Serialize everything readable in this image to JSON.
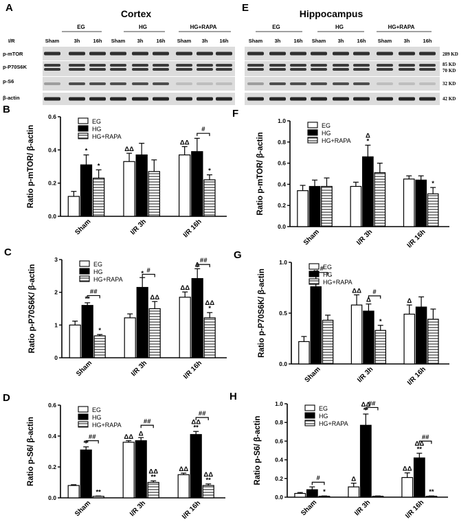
{
  "blots": {
    "A": {
      "letter": "A",
      "title": "Cortex"
    },
    "E": {
      "letter": "E",
      "title": "Hippocampus"
    },
    "group_headers": [
      "EG",
      "HG",
      "HG+RAPA"
    ],
    "lane_labels": [
      "I/R",
      "Sham",
      "3h",
      "16h",
      "Sham",
      "3h",
      "16h",
      "Sham",
      "3h",
      "16h"
    ],
    "row_labels": [
      "p-mTOR",
      "p-P70S6K",
      "p-S6",
      "β-actin"
    ],
    "kd_labels": [
      "289 KD",
      "85 KD",
      "70 KD",
      "32 KD",
      "42 KD"
    ]
  },
  "chart_data": [
    {
      "id": "B",
      "type": "bar",
      "letter": "B",
      "ylabel": "Ratio  p-mTOR/ β-actin",
      "ylim": [
        0,
        0.6
      ],
      "yticks": [
        "0.0",
        "0.2",
        "0.4",
        "0.6"
      ],
      "categories": [
        "Sham",
        "I/R 3h",
        "I/R 16h"
      ],
      "series": [
        {
          "name": "EG",
          "values": [
            0.12,
            0.33,
            0.37
          ],
          "errors": [
            0.03,
            0.05,
            0.05
          ],
          "marks": [
            "",
            "ΔΔ",
            "ΔΔ"
          ]
        },
        {
          "name": "HG",
          "values": [
            0.31,
            0.37,
            0.39
          ],
          "errors": [
            0.06,
            0.07,
            0.08
          ],
          "marks": [
            "*",
            "",
            ""
          ]
        },
        {
          "name": "HG+RAPA",
          "values": [
            0.23,
            0.27,
            0.22
          ],
          "errors": [
            0.05,
            0.07,
            0.03
          ],
          "marks": [
            "*",
            "",
            "*"
          ]
        }
      ],
      "brackets": [
        {
          "group": 2,
          "from": 1,
          "to": 2,
          "label": "#",
          "y": 0.5
        }
      ],
      "legend": "top-left"
    },
    {
      "id": "F",
      "type": "bar",
      "letter": "F",
      "ylabel": "Ratio  p-mTOR/ β-actin",
      "ylim": [
        0,
        1.0
      ],
      "yticks": [
        "0.0",
        "0.2",
        "0.4",
        "0.6",
        "0.8",
        "1.0"
      ],
      "categories": [
        "Sham",
        "I/R 3h",
        "I/R 16h"
      ],
      "series": [
        {
          "name": "EG",
          "values": [
            0.34,
            0.38,
            0.45
          ],
          "errors": [
            0.05,
            0.04,
            0.03
          ],
          "marks": [
            "",
            "",
            ""
          ]
        },
        {
          "name": "HG",
          "values": [
            0.38,
            0.66,
            0.44
          ],
          "errors": [
            0.06,
            0.11,
            0.04
          ],
          "marks": [
            "",
            "Δ\n*",
            ""
          ]
        },
        {
          "name": "HG+RAPA",
          "values": [
            0.38,
            0.51,
            0.31
          ],
          "errors": [
            0.08,
            0.09,
            0.06
          ],
          "marks": [
            "",
            "",
            "*"
          ]
        }
      ],
      "brackets": [],
      "legend": "top-left"
    },
    {
      "id": "C",
      "type": "bar",
      "letter": "C",
      "ylabel": "Ratio  p-P70S6K/ β-actin",
      "ylim": [
        0,
        3
      ],
      "yticks": [
        "0",
        "1",
        "2",
        "3"
      ],
      "categories": [
        "Sham",
        "I/R 3h",
        "I/R 16h"
      ],
      "series": [
        {
          "name": "EG",
          "values": [
            1.0,
            1.22,
            1.85
          ],
          "errors": [
            0.12,
            0.12,
            0.16
          ],
          "marks": [
            "",
            "",
            "ΔΔ"
          ]
        },
        {
          "name": "HG",
          "values": [
            1.6,
            2.15,
            2.42
          ],
          "errors": [
            0.08,
            0.3,
            0.3
          ],
          "marks": [
            "**",
            "*",
            "Δ"
          ]
        },
        {
          "name": "HG+RAPA",
          "values": [
            0.67,
            1.5,
            1.22
          ],
          "errors": [
            0.04,
            0.22,
            0.16
          ],
          "marks": [
            "*",
            "ΔΔ",
            "ΔΔ\n*"
          ]
        }
      ],
      "brackets": [
        {
          "group": 0,
          "from": 1,
          "to": 2,
          "label": "##",
          "y": 1.9
        },
        {
          "group": 1,
          "from": 1,
          "to": 2,
          "label": "#",
          "y": 2.55
        },
        {
          "group": 2,
          "from": 1,
          "to": 2,
          "label": "##",
          "y": 2.85
        }
      ],
      "legend": "top-left"
    },
    {
      "id": "G",
      "type": "bar",
      "letter": "G",
      "ylabel": "Ratio  p-P70S6K/ β-actin",
      "ylim": [
        0,
        1.0
      ],
      "yticks": [
        "0.0",
        "0.5",
        "1.0"
      ],
      "categories": [
        "Sham",
        "I/R 3h",
        "I/R 16h"
      ],
      "series": [
        {
          "name": "EG",
          "values": [
            0.22,
            0.58,
            0.49
          ],
          "errors": [
            0.05,
            0.1,
            0.09
          ],
          "marks": [
            "",
            "ΔΔ",
            "Δ"
          ]
        },
        {
          "name": "HG",
          "values": [
            0.76,
            0.52,
            0.56
          ],
          "errors": [
            0.1,
            0.07,
            0.1
          ],
          "marks": [
            "**",
            "Δ",
            ""
          ]
        },
        {
          "name": "HG+RAPA",
          "values": [
            0.43,
            0.33,
            0.44
          ],
          "errors": [
            0.05,
            0.05,
            0.1
          ],
          "marks": [
            "",
            "*",
            ""
          ]
        }
      ],
      "brackets": [
        {
          "group": 0,
          "from": 1,
          "to": 2,
          "label": "#",
          "y": 0.9
        },
        {
          "group": 1,
          "from": 1,
          "to": 2,
          "label": "#",
          "y": 0.67
        }
      ],
      "legend": "top-left"
    },
    {
      "id": "D",
      "type": "bar",
      "letter": "D",
      "ylabel": "Ratio  p-S6/ β-actin",
      "ylim": [
        0,
        0.6
      ],
      "yticks": [
        "0.0",
        "0.2",
        "0.4",
        "0.6"
      ],
      "categories": [
        "Sham",
        "I/R 3h",
        "I/R 16h"
      ],
      "series": [
        {
          "name": "EG",
          "values": [
            0.08,
            0.36,
            0.15
          ],
          "errors": [
            0.005,
            0.01,
            0.01
          ],
          "marks": [
            "",
            "ΔΔ",
            "ΔΔ"
          ]
        },
        {
          "name": "HG",
          "values": [
            0.31,
            0.37,
            0.41
          ],
          "errors": [
            0.02,
            0.02,
            0.02
          ],
          "marks": [
            "**",
            "Δ",
            "ΔΔ\n**"
          ]
        },
        {
          "name": "HG+RAPA",
          "values": [
            0.01,
            0.1,
            0.08
          ],
          "errors": [
            0.002,
            0.01,
            0.01
          ],
          "marks": [
            "**",
            "ΔΔ\n**",
            "ΔΔ\n**"
          ]
        }
      ],
      "brackets": [
        {
          "group": 0,
          "from": 1,
          "to": 2,
          "label": "##",
          "y": 0.37
        },
        {
          "group": 1,
          "from": 1,
          "to": 2,
          "label": "##",
          "y": 0.47
        },
        {
          "group": 2,
          "from": 1,
          "to": 2,
          "label": "##",
          "y": 0.52
        }
      ],
      "legend": "top-left"
    },
    {
      "id": "H",
      "type": "bar",
      "letter": "H",
      "ylabel": "Ratio  p-S6/ β-actin",
      "ylim": [
        0,
        1.0
      ],
      "yticks": [
        "0.0",
        "0.2",
        "0.4",
        "0.6",
        "0.8",
        "1.0"
      ],
      "categories": [
        "Sham",
        "I/R 3h",
        "I/R 16h"
      ],
      "series": [
        {
          "name": "EG",
          "values": [
            0.04,
            0.11,
            0.21
          ],
          "errors": [
            0.01,
            0.04,
            0.05
          ],
          "marks": [
            "",
            "Δ",
            "ΔΔ"
          ]
        },
        {
          "name": "HG",
          "values": [
            0.08,
            0.77,
            0.42
          ],
          "errors": [
            0.03,
            0.12,
            0.05
          ],
          "marks": [
            "",
            "ΔΔ\n**",
            "ΔΔ\n**"
          ]
        },
        {
          "name": "HG+RAPA",
          "values": [
            0.01,
            0.01,
            0.01
          ],
          "errors": [
            0.003,
            0.003,
            0.003
          ],
          "marks": [
            "*",
            "",
            "**"
          ]
        }
      ],
      "brackets": [
        {
          "group": 0,
          "from": 1,
          "to": 2,
          "label": "#",
          "y": 0.16
        },
        {
          "group": 1,
          "from": 1,
          "to": 2,
          "label": "##",
          "y": 0.96
        },
        {
          "group": 2,
          "from": 1,
          "to": 2,
          "label": "##",
          "y": 0.6
        }
      ],
      "legend": "top-left"
    }
  ]
}
